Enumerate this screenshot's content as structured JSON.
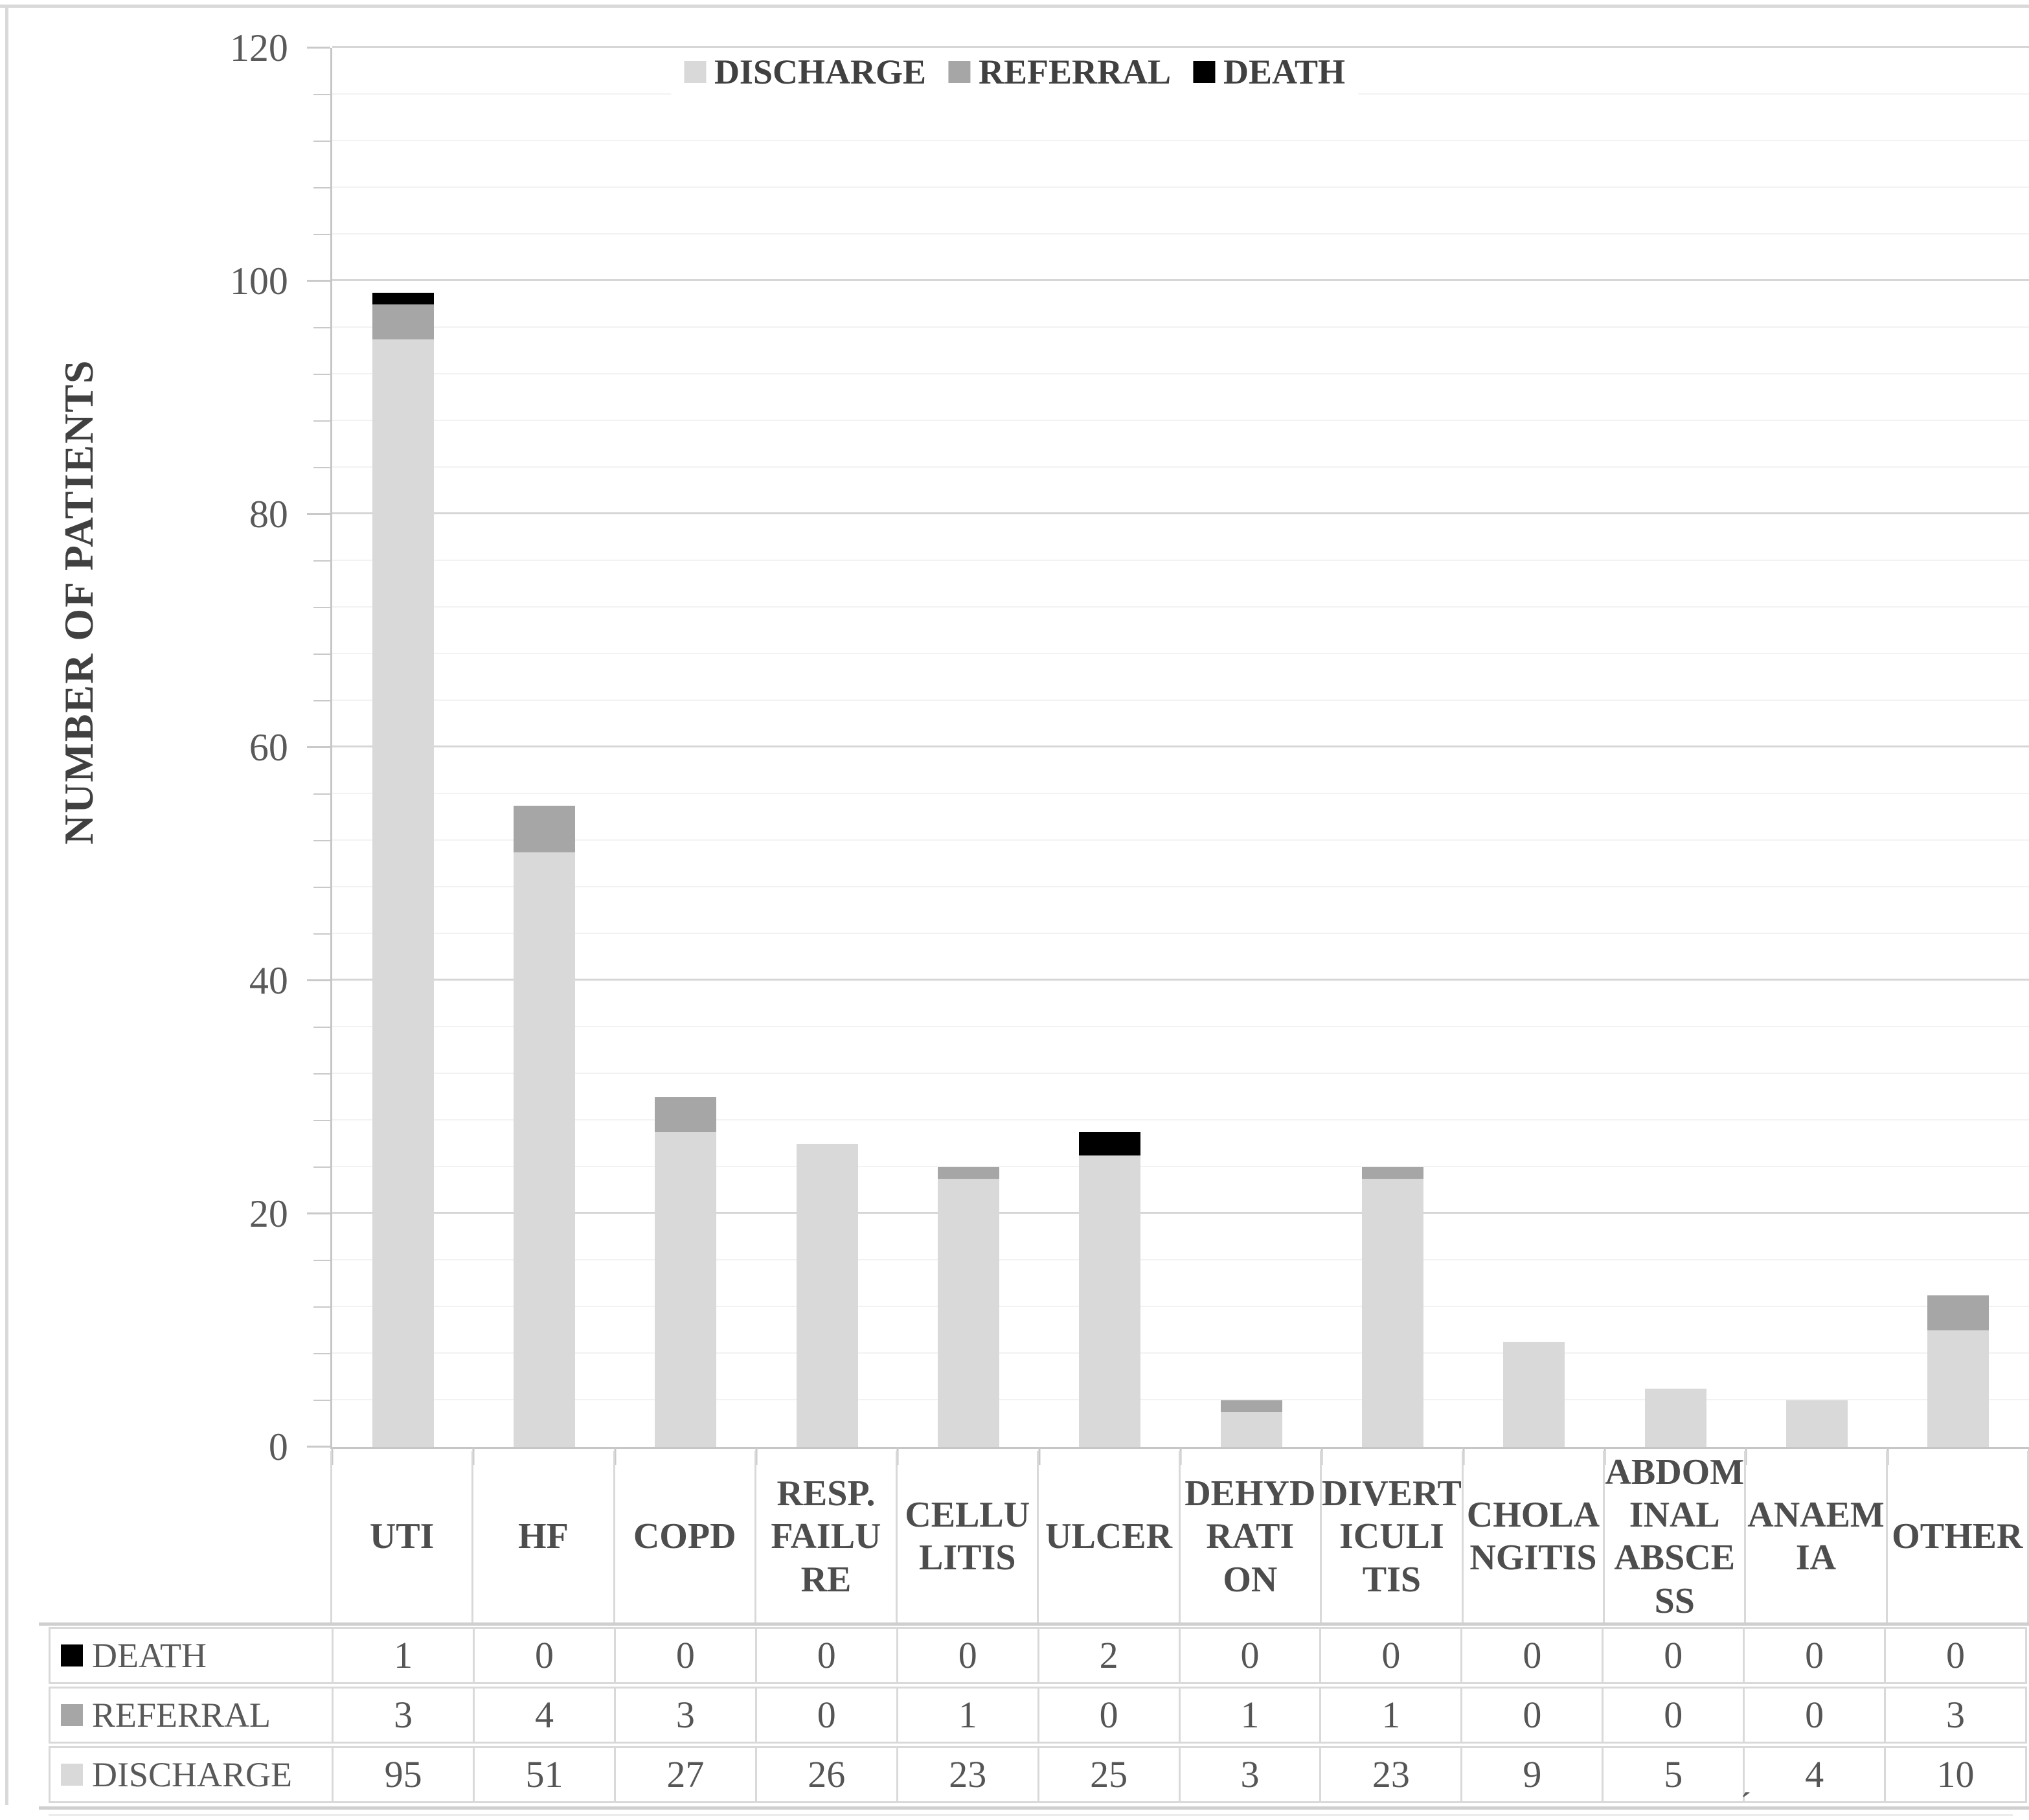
{
  "chart_data": {
    "type": "bar",
    "variant": "stacked-vertical",
    "title": "",
    "xlabel": "",
    "ylabel": "NUMBER OF PATIENTS",
    "ylim": [
      0,
      120
    ],
    "y_major_unit": 20,
    "y_minor_unit": 4,
    "y_tick_labels": [
      "120",
      "100",
      "80",
      "60",
      "40",
      "20",
      "0"
    ],
    "grid": {
      "major": true,
      "minor": true
    },
    "legend_position": "top-center",
    "categories": [
      "UTI",
      "HF",
      "COPD",
      "RESP. FAILURE",
      "CELLULITIS",
      "ULCER",
      "DEHYDRATION",
      "DIVERTICULITIS",
      "CHOLANGITIS",
      "ABDOMINAL ABSCESS",
      "ANAEMIA",
      "OTHER"
    ],
    "category_label_lines": [
      [
        "UTI"
      ],
      [
        "HF"
      ],
      [
        "COPD"
      ],
      [
        "RESP.",
        "FAILU",
        "RE"
      ],
      [
        "CELLU",
        "LITIS"
      ],
      [
        "ULCER"
      ],
      [
        "DEHYD",
        "RATI",
        "ON"
      ],
      [
        "DIVERT",
        "ICULI",
        "TIS"
      ],
      [
        "CHOLA",
        "NGITIS"
      ],
      [
        "ABDOM",
        "INAL",
        "ABSCE",
        "SS"
      ],
      [
        "ANAEM",
        "IA"
      ],
      [
        "OTHER"
      ]
    ],
    "series": [
      {
        "name": "DISCHARGE",
        "color": "#d9d9d9",
        "values": [
          95,
          51,
          27,
          26,
          23,
          25,
          3,
          23,
          9,
          5,
          4,
          10
        ]
      },
      {
        "name": "REFERRAL",
        "color": "#a6a6a6",
        "values": [
          3,
          4,
          3,
          0,
          1,
          0,
          1,
          1,
          0,
          0,
          0,
          3
        ]
      },
      {
        "name": "DEATH",
        "color": "#000000",
        "values": [
          1,
          0,
          0,
          0,
          0,
          2,
          0,
          0,
          0,
          0,
          0,
          0
        ]
      }
    ],
    "legend_items": [
      {
        "label": "DISCHARGE",
        "color": "#d9d9d9"
      },
      {
        "label": "REFERRAL",
        "color": "#a6a6a6"
      },
      {
        "label": "DEATH",
        "color": "#000000"
      }
    ]
  },
  "data_table": {
    "rows": [
      {
        "label": "DEATH",
        "swatch_color": "#000000",
        "values": [
          "1",
          "0",
          "0",
          "0",
          "0",
          "2",
          "0",
          "0",
          "0",
          "0",
          "0",
          "0"
        ]
      },
      {
        "label": "REFERRAL",
        "swatch_color": "#a6a6a6",
        "values": [
          "3",
          "4",
          "3",
          "0",
          "1",
          "0",
          "1",
          "1",
          "0",
          "0",
          "0",
          "3"
        ]
      },
      {
        "label": "DISCHARGE",
        "swatch_color": "#d9d9d9",
        "values": [
          "95",
          "51",
          "27",
          "26",
          "23",
          "25",
          "3",
          "23",
          "9",
          "5",
          "4",
          "10"
        ]
      }
    ]
  },
  "annotations": {
    "stray_mark": "´"
  },
  "style_colors": {
    "grid_minor": "#f2f2f2",
    "grid_major": "#d6d6d6",
    "axis_line": "#c6c6c6",
    "table_border": "#d9d9d9",
    "text": "#4d4d4d"
  }
}
